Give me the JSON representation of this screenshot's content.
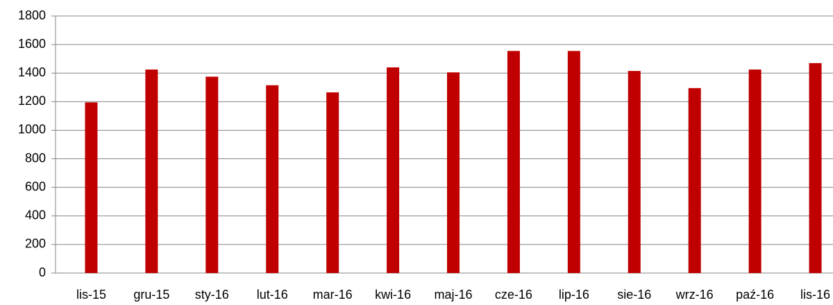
{
  "chart_data": {
    "type": "bar",
    "categories": [
      "lis-15",
      "gru-15",
      "sty-16",
      "lut-16",
      "mar-16",
      "kwi-16",
      "maj-16",
      "cze-16",
      "lip-16",
      "sie-16",
      "wrz-16",
      "paź-16",
      "lis-16"
    ],
    "values": [
      1195,
      1425,
      1375,
      1315,
      1265,
      1440,
      1405,
      1555,
      1555,
      1415,
      1295,
      1425,
      1470
    ],
    "color": "#c00000",
    "ylim": [
      0,
      1800
    ],
    "yticks": [
      0,
      200,
      400,
      600,
      800,
      1000,
      1200,
      1400,
      1600,
      1800
    ],
    "grid": true
  }
}
